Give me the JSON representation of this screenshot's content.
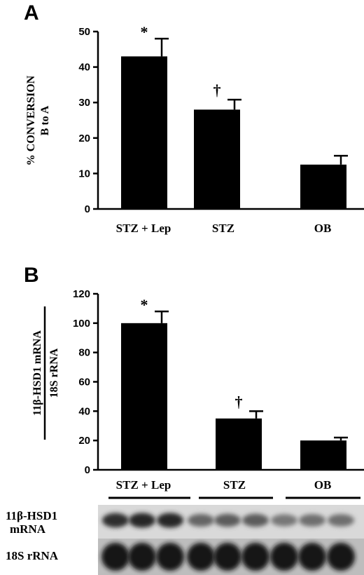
{
  "chart_data": [
    {
      "type": "bar",
      "panel": "A",
      "categories": [
        "STZ + Lep",
        "STZ",
        "OB"
      ],
      "values": [
        43,
        28,
        12.5
      ],
      "errors": [
        5,
        2.8,
        2.5
      ],
      "significance": [
        "*",
        "†",
        ""
      ],
      "ylabel_lines": [
        "% CONVERSION",
        "B to A"
      ],
      "ylim": [
        0,
        50
      ],
      "yticks": [
        0,
        10,
        20,
        30,
        40,
        50
      ],
      "grid": false,
      "bar_color": "#000000"
    },
    {
      "type": "bar",
      "panel": "B",
      "categories": [
        "STZ + Lep",
        "STZ",
        "OB"
      ],
      "values": [
        100,
        35,
        20
      ],
      "errors": [
        8,
        5,
        2
      ],
      "significance": [
        "*",
        "†",
        ""
      ],
      "ylabel_numerator": "11β-HSD1 mRNA",
      "ylabel_denominator": "18S rRNA",
      "ylim": [
        0,
        120
      ],
      "yticks": [
        0,
        20,
        40,
        60,
        80,
        100,
        120
      ],
      "grid": false,
      "bar_color": "#000000"
    }
  ],
  "blot": {
    "rows": [
      {
        "label_lines": [
          "11β-HSD1",
          "mRNA"
        ],
        "intensities": [
          0.85,
          0.9,
          0.9,
          0.55,
          0.6,
          0.6,
          0.45,
          0.5,
          0.5
        ]
      },
      {
        "label_lines": [
          "18S rRNA"
        ],
        "intensities": [
          1,
          1,
          1,
          1,
          1,
          1,
          1,
          1,
          1
        ]
      }
    ]
  }
}
